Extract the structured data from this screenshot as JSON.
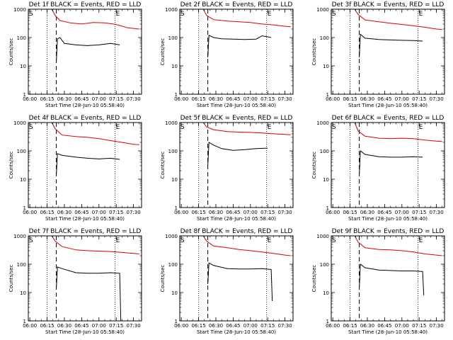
{
  "figure": {
    "y_axis_label": "Counts/sec",
    "x_axis_label": "Start Time (28-Jun-10 05:58:40)",
    "x_tick_labels": [
      "06:00",
      "06:15",
      "06:30",
      "06:45",
      "07:00",
      "07:15",
      "07:30"
    ],
    "y_tick_labels": [
      "1",
      "10",
      "100",
      "1000"
    ],
    "marker_start": "S",
    "marker_end": "E",
    "colors": {
      "events": "#000000",
      "lld": "#e00000"
    }
  },
  "chart_data": [
    {
      "type": "line",
      "title": "Det 1f BLACK = Events, RED = LLD",
      "xlabel": "Start Time (28-Jun-10 05:58:40)",
      "ylabel": "Counts/sec",
      "x_range": [
        "05:58:40",
        "07:37:00"
      ],
      "ylim": [
        1,
        1000
      ],
      "y_scale": "log",
      "vlines": {
        "dotted": [
          "06:15",
          "07:14"
        ],
        "dashed": [
          "06:23"
        ]
      },
      "series": [
        {
          "name": "Events",
          "color": "#000000",
          "points": [
            [
              "06:23",
              15
            ],
            [
              "06:24",
              90
            ],
            [
              "06:26",
              100
            ],
            [
              "06:30",
              62
            ],
            [
              "06:40",
              55
            ],
            [
              "06:50",
              52
            ],
            [
              "07:00",
              55
            ],
            [
              "07:10",
              62
            ],
            [
              "07:18",
              55
            ]
          ]
        },
        {
          "name": "LLD",
          "color": "#e00000",
          "points": [
            [
              "06:19",
              1000
            ],
            [
              "06:22",
              600
            ],
            [
              "06:26",
              400
            ],
            [
              "06:35",
              330
            ],
            [
              "06:45",
              300
            ],
            [
              "06:55",
              340
            ],
            [
              "07:05",
              330
            ],
            [
              "07:15",
              290
            ],
            [
              "07:25",
              220
            ],
            [
              "07:35",
              200
            ]
          ]
        }
      ]
    },
    {
      "type": "line",
      "title": "Det 2f BLACK = Events, RED = LLD",
      "xlabel": "Start Time (28-Jun-10 05:58:40)",
      "ylabel": "Counts/sec",
      "x_range": [
        "05:58:40",
        "07:37:00"
      ],
      "ylim": [
        1,
        1000
      ],
      "y_scale": "log",
      "vlines": {
        "dotted": [
          "06:15",
          "07:14"
        ],
        "dashed": [
          "06:23"
        ]
      },
      "series": [
        {
          "name": "Events",
          "color": "#000000",
          "points": [
            [
              "06:23",
              20
            ],
            [
              "06:24",
              120
            ],
            [
              "06:28",
              100
            ],
            [
              "06:35",
              90
            ],
            [
              "06:45",
              88
            ],
            [
              "06:55",
              85
            ],
            [
              "07:05",
              88
            ],
            [
              "07:10",
              115
            ],
            [
              "07:16",
              105
            ],
            [
              "07:18",
              100
            ]
          ]
        },
        {
          "name": "LLD",
          "color": "#e00000",
          "points": [
            [
              "06:19",
              1000
            ],
            [
              "06:22",
              600
            ],
            [
              "06:28",
              430
            ],
            [
              "06:40",
              380
            ],
            [
              "06:50",
              360
            ],
            [
              "07:00",
              340
            ],
            [
              "07:10",
              300
            ],
            [
              "07:20",
              280
            ],
            [
              "07:30",
              250
            ],
            [
              "07:35",
              240
            ]
          ]
        }
      ]
    },
    {
      "type": "line",
      "title": "Det 3f BLACK = Events, RED = LLD",
      "xlabel": "Start Time (28-Jun-10 05:58:40)",
      "ylabel": "Counts/sec",
      "x_range": [
        "05:58:40",
        "07:37:00"
      ],
      "ylim": [
        1,
        1000
      ],
      "y_scale": "log",
      "vlines": {
        "dotted": [
          "06:15",
          "07:14"
        ],
        "dashed": [
          "06:23"
        ]
      },
      "series": [
        {
          "name": "Events",
          "color": "#000000",
          "points": [
            [
              "06:23",
              20
            ],
            [
              "06:24",
              130
            ],
            [
              "06:28",
              95
            ],
            [
              "06:40",
              85
            ],
            [
              "06:50",
              82
            ],
            [
              "07:00",
              80
            ],
            [
              "07:10",
              78
            ],
            [
              "07:18",
              75
            ]
          ]
        },
        {
          "name": "LLD",
          "color": "#e00000",
          "points": [
            [
              "06:19",
              1000
            ],
            [
              "06:22",
              650
            ],
            [
              "06:28",
              420
            ],
            [
              "06:40",
              360
            ],
            [
              "06:50",
              320
            ],
            [
              "07:00",
              290
            ],
            [
              "07:10",
              260
            ],
            [
              "07:20",
              230
            ],
            [
              "07:30",
              200
            ],
            [
              "07:35",
              190
            ]
          ]
        }
      ]
    },
    {
      "type": "line",
      "title": "Det 4f BLACK = Events, RED = LLD",
      "xlabel": "Start Time (28-Jun-10 05:58:40)",
      "ylabel": "Counts/sec",
      "x_range": [
        "05:58:40",
        "07:37:00"
      ],
      "ylim": [
        1,
        1000
      ],
      "y_scale": "log",
      "vlines": {
        "dotted": [
          "06:15",
          "07:14"
        ],
        "dashed": [
          "06:23"
        ]
      },
      "series": [
        {
          "name": "Events",
          "color": "#000000",
          "points": [
            [
              "06:23",
              15
            ],
            [
              "06:24",
              80
            ],
            [
              "06:28",
              70
            ],
            [
              "06:40",
              60
            ],
            [
              "06:50",
              55
            ],
            [
              "07:00",
              52
            ],
            [
              "07:10",
              55
            ],
            [
              "07:18",
              50
            ]
          ]
        },
        {
          "name": "LLD",
          "color": "#e00000",
          "points": [
            [
              "06:19",
              1000
            ],
            [
              "06:22",
              600
            ],
            [
              "06:28",
              360
            ],
            [
              "06:40",
              320
            ],
            [
              "06:50",
              300
            ],
            [
              "07:00",
              270
            ],
            [
              "07:10",
              230
            ],
            [
              "07:20",
              200
            ],
            [
              "07:30",
              170
            ],
            [
              "07:35",
              165
            ]
          ]
        }
      ]
    },
    {
      "type": "line",
      "title": "Det 5f BLACK = Events, RED = LLD",
      "xlabel": "Start Time (28-Jun-10 05:58:40)",
      "ylabel": "Counts/sec",
      "x_range": [
        "05:58:40",
        "07:37:00"
      ],
      "ylim": [
        1,
        1000
      ],
      "y_scale": "log",
      "vlines": {
        "dotted": [
          "06:15",
          "07:14"
        ],
        "dashed": [
          "06:23"
        ]
      },
      "series": [
        {
          "name": "Events",
          "color": "#000000",
          "points": [
            [
              "06:23",
              30
            ],
            [
              "06:24",
              200
            ],
            [
              "06:28",
              160
            ],
            [
              "06:35",
              120
            ],
            [
              "06:45",
              105
            ],
            [
              "06:55",
              110
            ],
            [
              "07:05",
              120
            ],
            [
              "07:15",
              125
            ]
          ]
        },
        {
          "name": "LLD",
          "color": "#e00000",
          "points": [
            [
              "06:19",
              1000
            ],
            [
              "06:22",
              700
            ],
            [
              "06:28",
              560
            ],
            [
              "06:40",
              480
            ],
            [
              "06:50",
              460
            ],
            [
              "07:00",
              450
            ],
            [
              "07:10",
              430
            ],
            [
              "07:20",
              400
            ],
            [
              "07:30",
              380
            ],
            [
              "07:35",
              370
            ]
          ]
        }
      ]
    },
    {
      "type": "line",
      "title": "Det 6f BLACK = Events, RED = LLD",
      "xlabel": "Start Time (28-Jun-10 05:58:40)",
      "ylabel": "Counts/sec",
      "x_range": [
        "05:58:40",
        "07:37:00"
      ],
      "ylim": [
        1,
        1000
      ],
      "y_scale": "log",
      "vlines": {
        "dotted": [
          "06:15",
          "07:14"
        ],
        "dashed": [
          "06:23"
        ]
      },
      "series": [
        {
          "name": "Events",
          "color": "#000000",
          "points": [
            [
              "06:23",
              15
            ],
            [
              "06:24",
              100
            ],
            [
              "06:28",
              75
            ],
            [
              "06:40",
              62
            ],
            [
              "06:50",
              60
            ],
            [
              "07:00",
              60
            ],
            [
              "07:10",
              62
            ],
            [
              "07:18",
              60
            ]
          ]
        },
        {
          "name": "LLD",
          "color": "#e00000",
          "points": [
            [
              "06:19",
              1000
            ],
            [
              "06:22",
              500
            ],
            [
              "06:28",
              330
            ],
            [
              "06:40",
              280
            ],
            [
              "06:50",
              270
            ],
            [
              "07:00",
              280
            ],
            [
              "07:10",
              270
            ],
            [
              "07:20",
              240
            ],
            [
              "07:30",
              220
            ],
            [
              "07:35",
              215
            ]
          ]
        }
      ]
    },
    {
      "type": "line",
      "title": "Det 7f BLACK = Events, RED = LLD",
      "xlabel": "Start Time (28-Jun-10 05:58:40)",
      "ylabel": "Counts/sec",
      "x_range": [
        "05:58:40",
        "07:37:00"
      ],
      "ylim": [
        1,
        1000
      ],
      "y_scale": "log",
      "vlines": {
        "dotted": [
          "06:15",
          "07:14"
        ],
        "dashed": [
          "06:23"
        ]
      },
      "series": [
        {
          "name": "Events",
          "color": "#000000",
          "points": [
            [
              "06:23",
              15
            ],
            [
              "06:24",
              80
            ],
            [
              "06:28",
              70
            ],
            [
              "06:40",
              50
            ],
            [
              "06:50",
              48
            ],
            [
              "07:00",
              48
            ],
            [
              "07:10",
              50
            ],
            [
              "07:18",
              48
            ],
            [
              "07:19",
              1
            ]
          ]
        },
        {
          "name": "LLD",
          "color": "#e00000",
          "points": [
            [
              "06:19",
              1000
            ],
            [
              "06:22",
              650
            ],
            [
              "06:28",
              420
            ],
            [
              "06:40",
              320
            ],
            [
              "06:50",
              300
            ],
            [
              "07:00",
              290
            ],
            [
              "07:10",
              280
            ],
            [
              "07:20",
              260
            ],
            [
              "07:30",
              240
            ],
            [
              "07:35",
              230
            ]
          ]
        }
      ]
    },
    {
      "type": "line",
      "title": "Det 8f BLACK = Events, RED = LLD",
      "xlabel": "Start Time (28-Jun-10 05:58:40)",
      "ylabel": "Counts/sec",
      "x_range": [
        "05:58:40",
        "07:37:00"
      ],
      "ylim": [
        1,
        1000
      ],
      "y_scale": "log",
      "vlines": {
        "dotted": [
          "06:15",
          "07:14"
        ],
        "dashed": [
          "06:23"
        ]
      },
      "series": [
        {
          "name": "Events",
          "color": "#000000",
          "points": [
            [
              "06:23",
              20
            ],
            [
              "06:24",
              110
            ],
            [
              "06:28",
              90
            ],
            [
              "06:40",
              70
            ],
            [
              "06:50",
              68
            ],
            [
              "07:00",
              68
            ],
            [
              "07:10",
              70
            ],
            [
              "07:18",
              65
            ],
            [
              "07:19",
              5
            ]
          ]
        },
        {
          "name": "LLD",
          "color": "#e00000",
          "points": [
            [
              "06:19",
              1000
            ],
            [
              "06:22",
              650
            ],
            [
              "06:28",
              440
            ],
            [
              "06:40",
              380
            ],
            [
              "06:50",
              330
            ],
            [
              "07:00",
              300
            ],
            [
              "07:10",
              270
            ],
            [
              "07:20",
              240
            ],
            [
              "07:30",
              210
            ],
            [
              "07:35",
              200
            ]
          ]
        }
      ]
    },
    {
      "type": "line",
      "title": "Det 9f BLACK = Events, RED = LLD",
      "xlabel": "Start Time (28-Jun-10 05:58:40)",
      "ylabel": "Counts/sec",
      "x_range": [
        "05:58:40",
        "07:37:00"
      ],
      "ylim": [
        1,
        1000
      ],
      "y_scale": "log",
      "vlines": {
        "dotted": [
          "06:15",
          "07:14"
        ],
        "dashed": [
          "06:23"
        ]
      },
      "series": [
        {
          "name": "Events",
          "color": "#000000",
          "points": [
            [
              "06:23",
              15
            ],
            [
              "06:24",
              100
            ],
            [
              "06:28",
              75
            ],
            [
              "06:40",
              62
            ],
            [
              "06:50",
              60
            ],
            [
              "07:00",
              58
            ],
            [
              "07:10",
              58
            ],
            [
              "07:18",
              55
            ],
            [
              "07:19",
              8
            ]
          ]
        },
        {
          "name": "LLD",
          "color": "#e00000",
          "points": [
            [
              "06:19",
              1000
            ],
            [
              "06:22",
              600
            ],
            [
              "06:28",
              380
            ],
            [
              "06:40",
              330
            ],
            [
              "06:50",
              320
            ],
            [
              "07:00",
              300
            ],
            [
              "07:10",
              270
            ],
            [
              "07:20",
              230
            ],
            [
              "07:30",
              210
            ],
            [
              "07:35",
              200
            ]
          ]
        }
      ]
    }
  ]
}
